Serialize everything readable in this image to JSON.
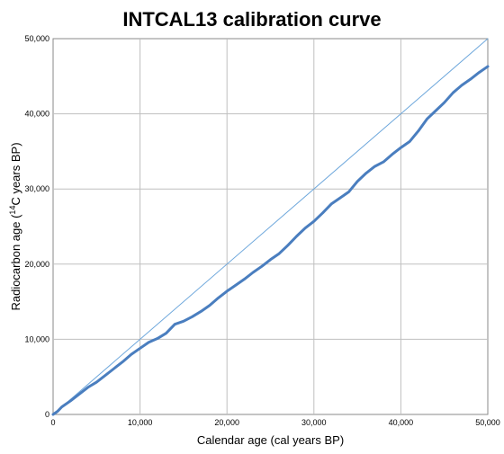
{
  "chart_data": {
    "type": "line",
    "title": "INTCAL13 calibration curve",
    "xlabel": "Calendar age (cal years BP)",
    "ylabel_parts": {
      "before": "Radiocarbon age (",
      "superscript": "14",
      "after": "C years BP)"
    },
    "xlim": [
      0,
      50000
    ],
    "ylim": [
      0,
      50000
    ],
    "xticks": [
      0,
      10000,
      20000,
      30000,
      40000,
      50000
    ],
    "xtick_labels": [
      "0",
      "10,000",
      "20,000",
      "30,000",
      "40,000",
      "50,000"
    ],
    "yticks": [
      0,
      10000,
      20000,
      30000,
      40000,
      50000
    ],
    "ytick_labels": [
      "0",
      "10,000",
      "20,000",
      "30,000",
      "40,000",
      "50,000"
    ],
    "grid": true,
    "colors": {
      "curve": "#4a7ebf",
      "reference": "#6fa8dc",
      "grid": "#bfbfbf",
      "axis": "#808080"
    },
    "series": [
      {
        "style": "reference",
        "x": [
          0,
          50000
        ],
        "y": [
          0,
          50000
        ]
      },
      {
        "style": "curve",
        "x": [
          0,
          500,
          1000,
          2000,
          3000,
          4000,
          5000,
          6000,
          7000,
          8000,
          9000,
          10000,
          11000,
          12000,
          13000,
          14000,
          15000,
          16000,
          17000,
          18000,
          19000,
          20000,
          21000,
          22000,
          23000,
          24000,
          25000,
          26000,
          27000,
          28000,
          29000,
          30000,
          31000,
          32000,
          33000,
          34000,
          35000,
          36000,
          37000,
          38000,
          39000,
          40000,
          41000,
          42000,
          43000,
          44000,
          45000,
          46000,
          47000,
          48000,
          49000,
          50000
        ],
        "y": [
          0,
          400,
          1000,
          1800,
          2700,
          3600,
          4300,
          5200,
          6100,
          7000,
          8000,
          8800,
          9600,
          10100,
          10800,
          12000,
          12400,
          13000,
          13700,
          14500,
          15500,
          16400,
          17200,
          18000,
          18900,
          19700,
          20600,
          21400,
          22500,
          23700,
          24800,
          25700,
          26800,
          28000,
          28800,
          29600,
          31000,
          32100,
          33000,
          33600,
          34600,
          35500,
          36300,
          37700,
          39300,
          40400,
          41500,
          42800,
          43800,
          44600,
          45500,
          46300
        ]
      }
    ]
  }
}
